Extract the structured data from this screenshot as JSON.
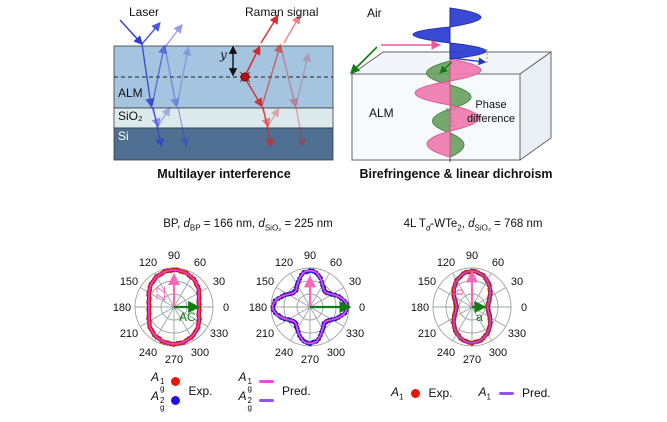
{
  "colors": {
    "laser_blue": "#2b3bd4",
    "raman_red": "#d62222",
    "alm_layer": "#a4c4e0",
    "sio2_layer": "#dceaed",
    "si_layer": "#4f7092",
    "arrow_pink": "#f868b8",
    "arrow_green": "#0f7d0f",
    "exp_red": "#e8150a",
    "exp_blue": "#2013e8",
    "pred_magenta": "#f747f0",
    "pred_violet": "#9751f0",
    "wave_blue": "#2f3fd3",
    "wave_pink": "#ef7ab0",
    "wave_green": "#69a05e"
  },
  "interference": {
    "laser": "Laser",
    "raman": "Raman signal",
    "y": "y",
    "layers": [
      {
        "label": "ALM"
      },
      {
        "label": "SiO₂"
      },
      {
        "label": "Si"
      }
    ],
    "caption": "Multilayer interference"
  },
  "birefringence": {
    "air": "Air",
    "alm": "ALM",
    "phase1": "Phase",
    "phase2": "difference",
    "caption": "Birefringence & linear dichroism"
  },
  "bp_panel": {
    "t1": "BP, ",
    "d1": "d",
    "s1": "BP",
    "t2": " = 166 nm, ",
    "d2": "d",
    "s2": "SiO₂",
    "t3": " = 225 nm"
  },
  "wte2_panel": {
    "t1": "4L T",
    "s1": "d",
    "t2": "-WTe",
    "s2": "2",
    "t3": ", ",
    "d1": "d",
    "s3": "SiO₂",
    "t4": " = 768 nm"
  },
  "bp_legend": {
    "exp_label": "Exp.",
    "pred_label": "Pred.",
    "rows": [
      {
        "sym": "A",
        "sup": "1",
        "sub": "g"
      },
      {
        "sym": "A",
        "sup": "2",
        "sub": "g"
      }
    ]
  },
  "wte2_legend": {
    "exp_sym": {
      "sym": "A",
      "sub": "1"
    },
    "exp_label": "Exp.",
    "pred_sym": {
      "sym": "A",
      "sub": "1"
    },
    "pred_label": "Pred."
  },
  "chart_data": [
    {
      "type": "polar",
      "name": "BP Ag1 Raman angular dependence",
      "angle_ticks": [
        "0",
        "30",
        "60",
        "90",
        "120",
        "150",
        "180",
        "210",
        "240",
        "270",
        "300",
        "330"
      ],
      "theta_step_deg": 10,
      "r_max": 1.0,
      "grid": {
        "rings": 3,
        "spoke_step_deg": 30
      },
      "series": [
        {
          "name": "Ag1 Exp.",
          "style": "dots",
          "color": "#e8150a",
          "r": [
            0.64,
            0.65,
            0.68,
            0.74,
            0.8,
            0.85,
            0.89,
            0.92,
            0.94,
            0.95,
            0.94,
            0.92,
            0.89,
            0.85,
            0.8,
            0.74,
            0.68,
            0.65,
            0.64,
            0.65,
            0.68,
            0.74,
            0.8,
            0.85,
            0.89,
            0.92,
            0.94,
            0.95,
            0.94,
            0.92,
            0.89,
            0.85,
            0.8,
            0.74,
            0.68,
            0.65
          ]
        },
        {
          "name": "Ag1 Pred.",
          "style": "line",
          "color": "#e83ee8",
          "r_ref": 0
        }
      ],
      "arrows": {
        "up": {
          "len": 0.78,
          "label": "ZZ",
          "color": "#f868b8"
        },
        "right": {
          "len": 0.58,
          "label": "AC",
          "color": "#0f7d0f"
        }
      }
    },
    {
      "type": "polar",
      "name": "BP Ag2 Raman angular dependence",
      "angle_ticks": [
        "0",
        "30",
        "60",
        "90",
        "120",
        "150",
        "180",
        "210",
        "240",
        "270",
        "300",
        "330"
      ],
      "theta_step_deg": 10,
      "r_max": 1.0,
      "grid": {
        "rings": 3,
        "spoke_step_deg": 30
      },
      "series": [
        {
          "name": "Ag2 Exp.",
          "style": "dots",
          "color": "#2013e8",
          "r": [
            0.96,
            0.9,
            0.78,
            0.65,
            0.56,
            0.56,
            0.65,
            0.78,
            0.9,
            0.93,
            0.9,
            0.78,
            0.65,
            0.56,
            0.56,
            0.65,
            0.78,
            0.9,
            0.96,
            0.9,
            0.78,
            0.65,
            0.56,
            0.56,
            0.65,
            0.78,
            0.9,
            0.93,
            0.9,
            0.78,
            0.65,
            0.56,
            0.56,
            0.65,
            0.78,
            0.9
          ]
        },
        {
          "name": "Ag2 Pred.",
          "style": "line",
          "color": "#f84fd8",
          "r_ref": 0
        }
      ],
      "arrows": {
        "up": {
          "len": 0.72,
          "label": "",
          "color": "#f868b8"
        },
        "right": {
          "len": 0.97,
          "label": "",
          "color": "#0f7d0f"
        }
      }
    },
    {
      "type": "polar",
      "name": "WTe2 A1 Raman angular dependence",
      "angle_ticks": [
        "0",
        "30",
        "60",
        "90",
        "120",
        "150",
        "180",
        "210",
        "240",
        "270",
        "300",
        "330"
      ],
      "theta_step_deg": 10,
      "r_max": 1.0,
      "grid": {
        "rings": 3,
        "spoke_step_deg": 30
      },
      "series": [
        {
          "name": "A1 Exp.",
          "style": "dots",
          "color": "#e8150a",
          "r": [
            0.4,
            0.42,
            0.46,
            0.53,
            0.61,
            0.7,
            0.78,
            0.85,
            0.9,
            0.92,
            0.9,
            0.85,
            0.78,
            0.7,
            0.61,
            0.53,
            0.46,
            0.42,
            0.4,
            0.42,
            0.46,
            0.53,
            0.61,
            0.7,
            0.78,
            0.85,
            0.9,
            0.92,
            0.9,
            0.85,
            0.78,
            0.7,
            0.61,
            0.53,
            0.46,
            0.42
          ]
        },
        {
          "name": "A1 Pred.",
          "style": "line",
          "color": "#9b59f0",
          "r_ref": 0
        }
      ],
      "arrows": {
        "up": {
          "len": 0.85,
          "label": "b",
          "color": "#f868b8"
        },
        "right": {
          "len": 0.28,
          "label": "a",
          "color": "#0f7d0f"
        }
      }
    }
  ]
}
